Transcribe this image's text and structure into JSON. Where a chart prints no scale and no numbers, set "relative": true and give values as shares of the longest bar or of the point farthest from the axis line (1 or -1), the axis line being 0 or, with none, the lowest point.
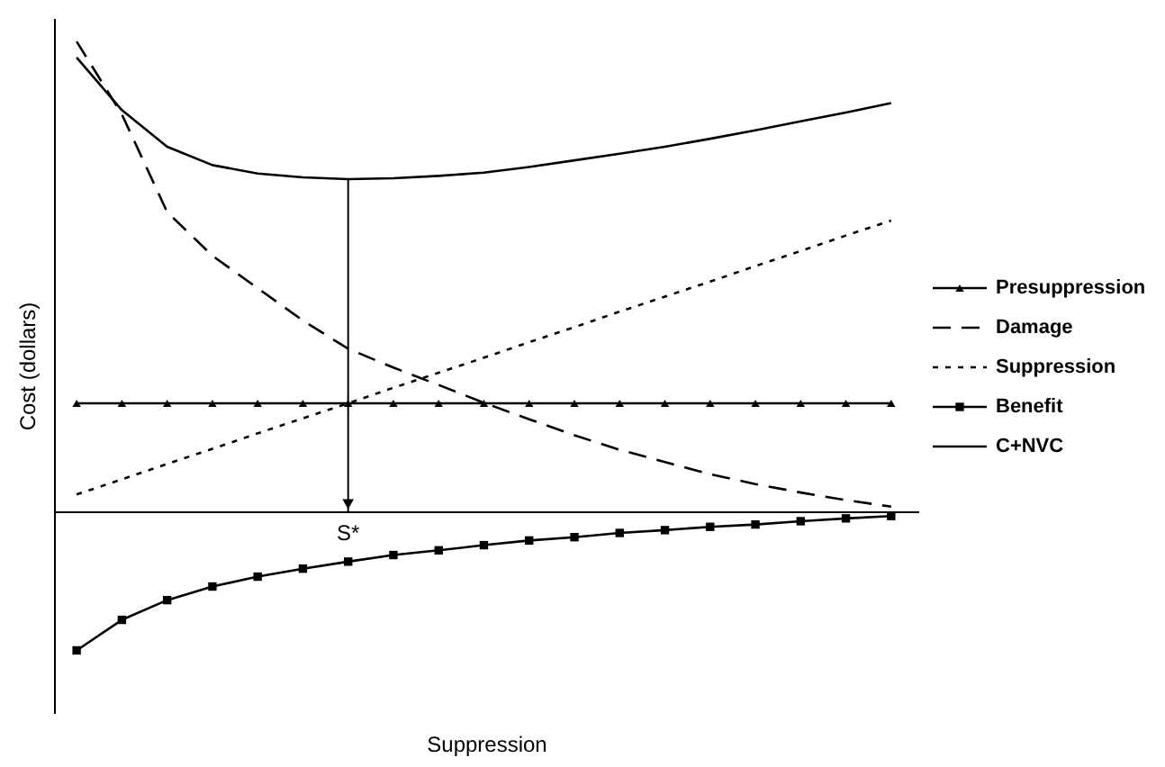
{
  "chart_data": {
    "type": "line",
    "relative": true,
    "xlabel": "Suppression",
    "ylabel": "Cost (dollars)",
    "categories": [
      null,
      null,
      null,
      null,
      null,
      null,
      null,
      null,
      null,
      null,
      null,
      null,
      null,
      null,
      null,
      null,
      null,
      null,
      null
    ],
    "series": [
      {
        "name": "Presuppression",
        "color": "#000000",
        "marker": "triangle",
        "line_style": "solid",
        "values": [
          0.23,
          0.23,
          0.23,
          0.23,
          0.23,
          0.23,
          0.23,
          0.23,
          0.23,
          0.23,
          0.23,
          0.23,
          0.23,
          0.23,
          0.23,
          0.23,
          0.23,
          0.23,
          0.23
        ]
      },
      {
        "name": "Damage",
        "color": "#000000",
        "marker": "none",
        "line_style": "dashed",
        "values": [
          1.0,
          0.845,
          0.637,
          0.544,
          0.475,
          0.406,
          0.346,
          0.306,
          0.269,
          0.231,
          0.196,
          0.162,
          0.131,
          0.105,
          0.079,
          0.058,
          0.04,
          0.024,
          0.01
        ]
      },
      {
        "name": "Suppression",
        "color": "#000000",
        "marker": "none",
        "line_style": "dotted",
        "values": [
          0.036,
          0.068,
          0.101,
          0.133,
          0.166,
          0.198,
          0.23,
          0.263,
          0.295,
          0.327,
          0.36,
          0.392,
          0.425,
          0.457,
          0.489,
          0.522,
          0.554,
          0.587,
          0.619
        ]
      },
      {
        "name": "Benefit",
        "color": "#000000",
        "marker": "square",
        "line_style": "solid",
        "values": [
          -0.296,
          -0.231,
          -0.189,
          -0.16,
          -0.139,
          -0.122,
          -0.107,
          -0.093,
          -0.083,
          -0.072,
          -0.062,
          -0.055,
          -0.046,
          -0.04,
          -0.033,
          -0.028,
          -0.021,
          -0.015,
          -0.01
        ]
      },
      {
        "name": "C+NVC",
        "color": "#000000",
        "marker": "none",
        "line_style": "solid",
        "values": [
          0.966,
          0.854,
          0.776,
          0.737,
          0.719,
          0.711,
          0.707,
          0.709,
          0.714,
          0.721,
          0.733,
          0.747,
          0.761,
          0.776,
          0.793,
          0.811,
          0.83,
          0.849,
          0.869
        ]
      }
    ],
    "annotations": [
      "S*"
    ],
    "legend": "right",
    "grid": false,
    "tick_labels": false
  }
}
